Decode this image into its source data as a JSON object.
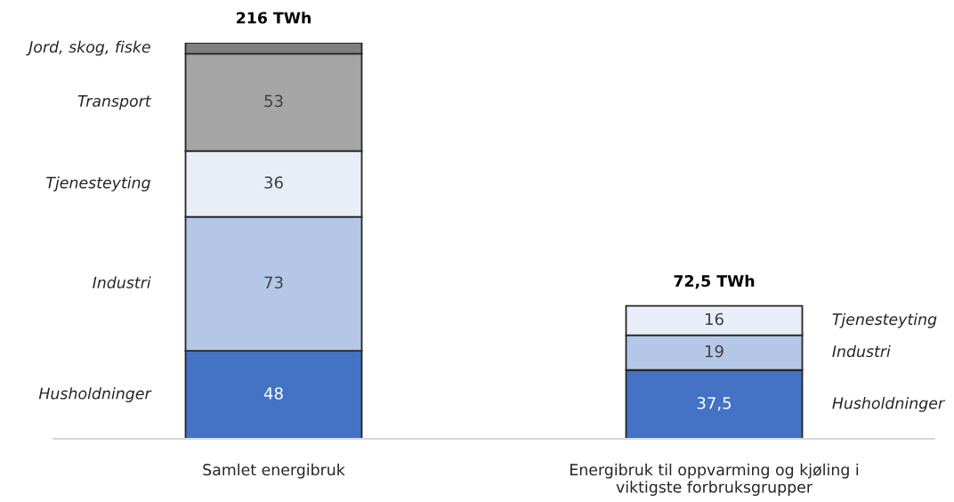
{
  "chart_data": {
    "type": "bar",
    "stacked": true,
    "categories": [
      "Samlet energibruk",
      "Energibruk til oppvarming og kjøling i viktigste forbruksgrupper"
    ],
    "series": [
      {
        "name": "Husholdninger",
        "color": "#4472c4",
        "values": [
          48,
          37.5
        ],
        "value_labels": [
          "48",
          "37,5"
        ]
      },
      {
        "name": "Industri",
        "color": "#b4c7e7",
        "values": [
          73,
          19
        ],
        "value_labels": [
          "73",
          "19"
        ]
      },
      {
        "name": "Tjenesteyting",
        "color": "#e9edf7",
        "values": [
          36,
          16
        ],
        "value_labels": [
          "36",
          "16"
        ]
      },
      {
        "name": "Transport",
        "color": "#a5a5a5",
        "values": [
          53,
          null
        ],
        "value_labels": [
          "53",
          null
        ]
      },
      {
        "name": "Jord, skog, fiske",
        "color": "#7f7f7f",
        "values": [
          6,
          null
        ],
        "value_labels": [
          null,
          null
        ]
      }
    ],
    "totals": [
      "216 TWh",
      "72,5 TWh"
    ]
  }
}
